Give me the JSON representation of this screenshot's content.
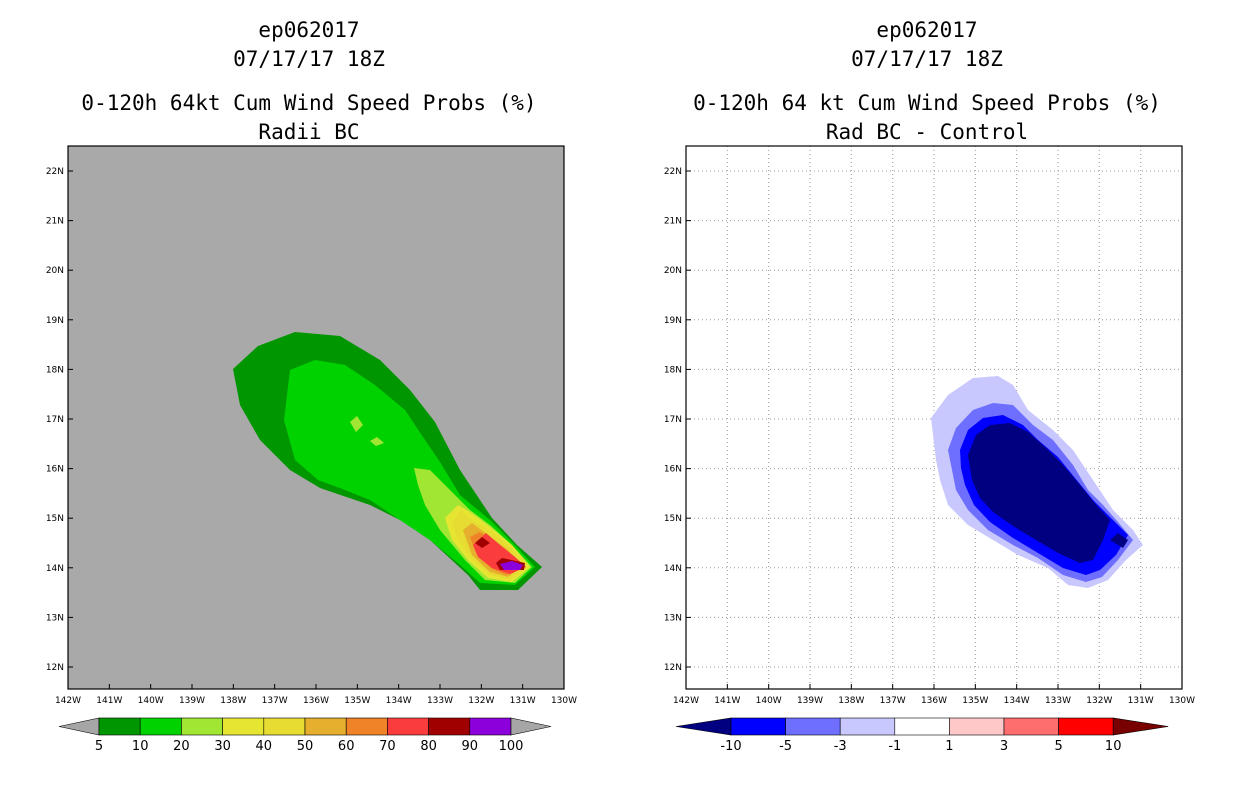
{
  "left": {
    "title_line1": "ep062017",
    "title_line2": "07/17/17 18Z",
    "title_line3": "0-120h 64kt Cum Wind Speed Probs (%)",
    "title_line4": "Radii BC",
    "lat_labels": [
      "22N",
      "21N",
      "20N",
      "19N",
      "18N",
      "17N",
      "16N",
      "15N",
      "14N",
      "13N",
      "12N"
    ],
    "lon_labels": [
      "142W",
      "141W",
      "140W",
      "139W",
      "138W",
      "137W",
      "136W",
      "135W",
      "134W",
      "133W",
      "132W",
      "131W",
      "130W"
    ],
    "colorbar": {
      "under_color": "#a6a6a6",
      "over_color": "#a6a6a6",
      "colors": [
        "#009600",
        "#00d200",
        "#a0e632",
        "#e6e632",
        "#e6dc32",
        "#e6af2d",
        "#f08228",
        "#fa3c3c",
        "#a00000",
        "#8c00dc"
      ],
      "labels": [
        "5",
        "10",
        "20",
        "30",
        "40",
        "50",
        "60",
        "70",
        "80",
        "90",
        "100"
      ]
    }
  },
  "right": {
    "title_line1": "ep062017",
    "title_line2": "07/17/17 18Z",
    "title_line3": "0-120h 64 kt Cum Wind Speed Probs (%)",
    "title_line4": "Rad BC - Control",
    "lat_labels": [
      "22N",
      "21N",
      "20N",
      "19N",
      "18N",
      "17N",
      "16N",
      "15N",
      "14N",
      "13N",
      "12N"
    ],
    "lon_labels": [
      "142W",
      "141W",
      "140W",
      "139W",
      "138W",
      "137W",
      "136W",
      "135W",
      "134W",
      "133W",
      "132W",
      "131W",
      "130W"
    ],
    "colorbar": {
      "under_color": "#000080",
      "over_color": "#780000",
      "colors": [
        "#0000ff",
        "#6e6eff",
        "#c8c8ff",
        "#ffffff",
        "#ffc8c8",
        "#ff6e6e",
        "#ff0000"
      ],
      "labels": [
        "-10",
        "-5",
        "-3",
        "-1",
        "1",
        "3",
        "5",
        "10"
      ]
    }
  }
}
